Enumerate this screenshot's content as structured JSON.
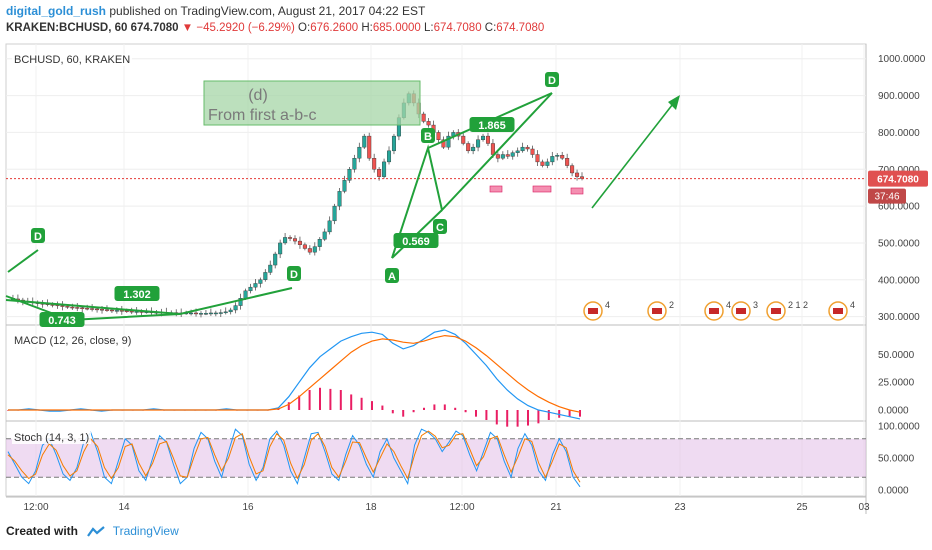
{
  "header": {
    "author": "digital_gold_rush",
    "published_text": "published on TradingView.com, August 21, 2017 04:22 EST",
    "symbol_line": "KRAKEN:BCHUSD, 60",
    "last_price": "674.7080",
    "change_text": "−45.2920 (−6.29%)",
    "o_label": "O:",
    "o_value": "676.2600",
    "h_label": "H:",
    "h_value": "685.0000",
    "l_label": "L:",
    "l_value": "674.7080",
    "c_label": "C:",
    "c_value": "674.7080"
  },
  "panes": {
    "main_label": "BCHUSD, 60, KRAKEN",
    "macd_label": "MACD (12, 26, close, 9)",
    "stoch_label": "Stoch (14, 3, 1)"
  },
  "annotation": {
    "line1": "(d)",
    "line2": "From first a-b-c"
  },
  "price_tag": "674.7080",
  "countdown_tag": "37:46",
  "footer": {
    "created_with": "Created with",
    "brand": "TradingView"
  },
  "colors": {
    "up": "#26a69a",
    "down": "#ef5350",
    "pattern": "#21a13a",
    "macd": "#2196f3",
    "signal": "#ff6d00",
    "hist": "#e91e63",
    "stoch_k": "#2196f3",
    "stoch_d": "#f57c00",
    "stoch_band": "#e1bee7",
    "price_line": "#e53935"
  },
  "chart_data": [
    {
      "type": "candlestick",
      "title": "BCHUSD, 60, KRAKEN",
      "x_tick_labels": [
        "12:00",
        "14",
        "16",
        "18",
        "12:00",
        "21",
        "23",
        "25",
        "03"
      ],
      "y_tick_labels": [
        "1000.0000",
        "900.0000",
        "800.0000",
        "700.0000",
        "600.0000",
        "500.0000",
        "400.0000",
        "300.0000"
      ],
      "ylim": [
        280,
        1040
      ],
      "close_series": [
        350,
        348,
        345,
        342,
        340,
        338,
        336,
        335,
        333,
        332,
        330,
        328,
        326,
        325,
        324,
        323,
        322,
        321,
        320,
        319,
        318,
        317,
        317,
        316,
        315,
        314,
        314,
        313,
        313,
        312,
        312,
        312,
        311,
        311,
        310,
        310,
        310,
        310,
        309,
        309,
        309,
        310,
        310,
        311,
        313,
        318,
        330,
        350,
        370,
        380,
        390,
        400,
        420,
        440,
        470,
        500,
        515,
        512,
        505,
        495,
        485,
        475,
        490,
        510,
        530,
        560,
        600,
        640,
        670,
        700,
        730,
        760,
        790,
        730,
        700,
        680,
        720,
        750,
        790,
        840,
        880,
        905,
        880,
        850,
        830,
        820,
        800,
        780,
        760,
        790,
        800,
        790,
        770,
        750,
        760,
        780,
        790,
        770,
        740,
        730,
        740,
        735,
        745,
        750,
        760,
        755,
        740,
        720,
        710,
        720,
        735,
        738,
        730,
        710,
        690,
        680,
        675
      ],
      "wave_labels": [
        "D",
        "1.302",
        "0.743",
        "D",
        "A",
        "B",
        "C",
        "0.569",
        "1.865",
        "D"
      ],
      "grid": true
    },
    {
      "type": "line",
      "title": "MACD (12, 26, close, 9)",
      "y_tick_labels": [
        "50.0000",
        "25.0000",
        "0.0000"
      ],
      "series": [
        {
          "values": [
            0,
            0,
            1,
            0,
            -1,
            -1,
            0,
            1,
            0,
            -1,
            0,
            0,
            0,
            0,
            1,
            0,
            0,
            0,
            0,
            0,
            0,
            1,
            0,
            0,
            0,
            0,
            2,
            12,
            25,
            38,
            48,
            55,
            62,
            66,
            69,
            70,
            68,
            60,
            55,
            58,
            64,
            70,
            72,
            68,
            60,
            50,
            40,
            28,
            18,
            10,
            4,
            0,
            -2,
            -4,
            -6,
            -8
          ]
        },
        {
          "values": [
            0,
            0,
            0,
            0,
            0,
            0,
            0,
            0,
            0,
            0,
            0,
            0,
            0,
            0,
            0,
            0,
            0,
            0,
            0,
            0,
            0,
            0,
            0,
            0,
            0,
            0,
            1,
            5,
            12,
            20,
            28,
            36,
            44,
            52,
            58,
            62,
            64,
            63,
            61,
            60,
            62,
            65,
            67,
            66,
            62,
            56,
            49,
            41,
            33,
            25,
            18,
            12,
            7,
            3,
            0,
            -2
          ]
        }
      ],
      "histogram": [
        0,
        0,
        1,
        0,
        -1,
        -1,
        0,
        1,
        0,
        -1,
        0,
        0,
        0,
        0,
        1,
        0,
        0,
        0,
        0,
        0,
        0,
        1,
        0,
        0,
        0,
        0,
        1,
        7,
        13,
        18,
        20,
        19,
        18,
        14,
        11,
        8,
        4,
        -3,
        -6,
        -2,
        2,
        5,
        5,
        2,
        -2,
        -6,
        -9,
        -13,
        -15,
        -15,
        -14,
        -12,
        -9,
        -7,
        -6,
        -6
      ]
    },
    {
      "type": "line",
      "title": "Stoch (14, 3, 1)",
      "y_tick_labels": [
        "100.0000",
        "50.0000",
        "0.0000"
      ],
      "ylim": [
        0,
        100
      ],
      "bands": [
        20,
        80
      ],
      "series": [
        {
          "values": [
            60,
            40,
            20,
            10,
            30,
            70,
            80,
            55,
            25,
            15,
            35,
            75,
            90,
            60,
            20,
            10,
            45,
            80,
            70,
            30,
            15,
            50,
            85,
            75,
            40,
            10,
            20,
            65,
            90,
            80,
            45,
            20,
            60,
            95,
            85,
            40,
            15,
            35,
            80,
            92,
            70,
            30,
            10,
            50,
            88,
            90,
            60,
            25,
            15,
            55,
            85,
            70,
            40,
            20,
            60,
            80,
            50,
            30,
            10,
            70,
            95,
            90,
            80,
            60,
            75,
            92,
            85,
            55,
            30,
            60,
            90,
            80,
            45,
            20,
            65,
            88,
            70,
            30,
            15,
            55,
            80,
            60,
            20,
            5
          ]
        },
        {
          "values": [
            55,
            45,
            30,
            18,
            25,
            55,
            72,
            62,
            38,
            22,
            30,
            60,
            80,
            68,
            35,
            18,
            35,
            68,
            72,
            42,
            22,
            42,
            72,
            76,
            50,
            22,
            20,
            52,
            80,
            82,
            55,
            30,
            50,
            82,
            88,
            52,
            25,
            30,
            68,
            88,
            78,
            42,
            18,
            40,
            78,
            88,
            68,
            35,
            20,
            45,
            75,
            74,
            50,
            28,
            50,
            72,
            60,
            38,
            18,
            55,
            85,
            92,
            84,
            66,
            70,
            86,
            88,
            64,
            38,
            52,
            80,
            84,
            55,
            28,
            52,
            80,
            76,
            42,
            20,
            45,
            72,
            66,
            30,
            12
          ]
        }
      ]
    }
  ]
}
